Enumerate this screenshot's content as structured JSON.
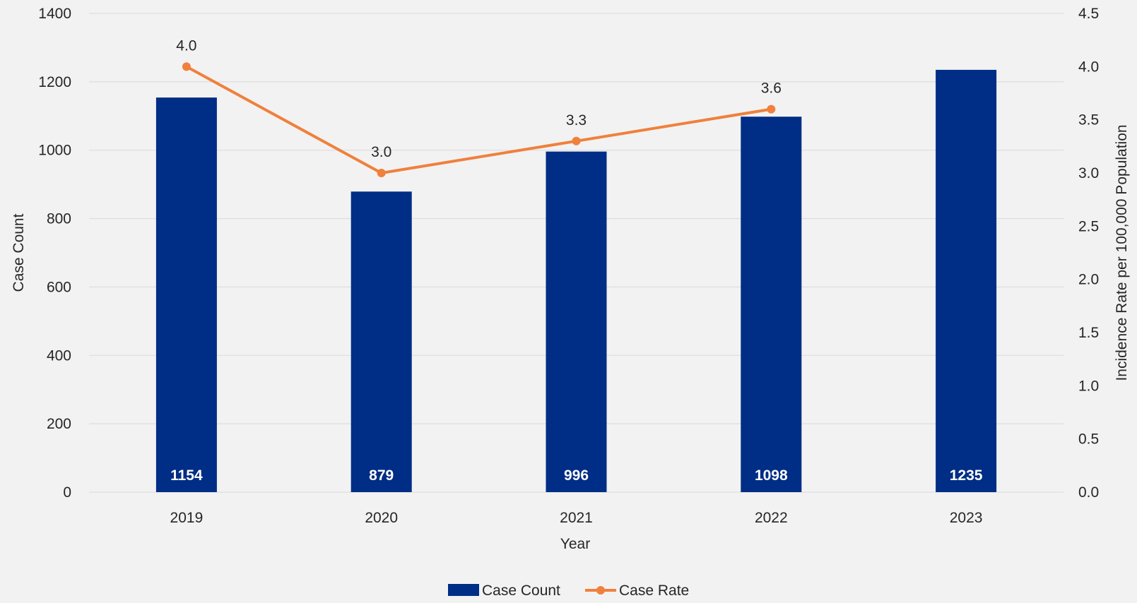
{
  "chart_data": {
    "type": "bar",
    "categories": [
      "2019",
      "2020",
      "2021",
      "2022",
      "2023"
    ],
    "series": [
      {
        "name": "Case Count",
        "type": "bar",
        "axis": "left",
        "values": [
          1154,
          879,
          996,
          1098,
          1235
        ],
        "labels": [
          "1154",
          "879",
          "996",
          "1098",
          "1235"
        ],
        "color": "#002d85"
      },
      {
        "name": "Case Rate",
        "type": "line",
        "axis": "right",
        "values": [
          4.0,
          3.0,
          3.3,
          3.6,
          null
        ],
        "labels": [
          "4.0",
          "3.0",
          "3.3",
          "3.6",
          ""
        ],
        "color": "#f0803c"
      }
    ],
    "xlabel": "Year",
    "ylabel": "Case Count",
    "y2label": "Incidence Rate per 100,000 Population",
    "ylim": [
      0,
      1400
    ],
    "y2lim": [
      0,
      4.5
    ],
    "yticks": [
      "0",
      "200",
      "400",
      "600",
      "800",
      "1000",
      "1200",
      "1400"
    ],
    "y2ticks": [
      "0.0",
      "0.5",
      "1.0",
      "1.5",
      "2.0",
      "2.5",
      "3.0",
      "3.5",
      "4.0",
      "4.5"
    ],
    "grid": true,
    "legend": "bottom-center",
    "gridColor": "#d9d9d9"
  }
}
